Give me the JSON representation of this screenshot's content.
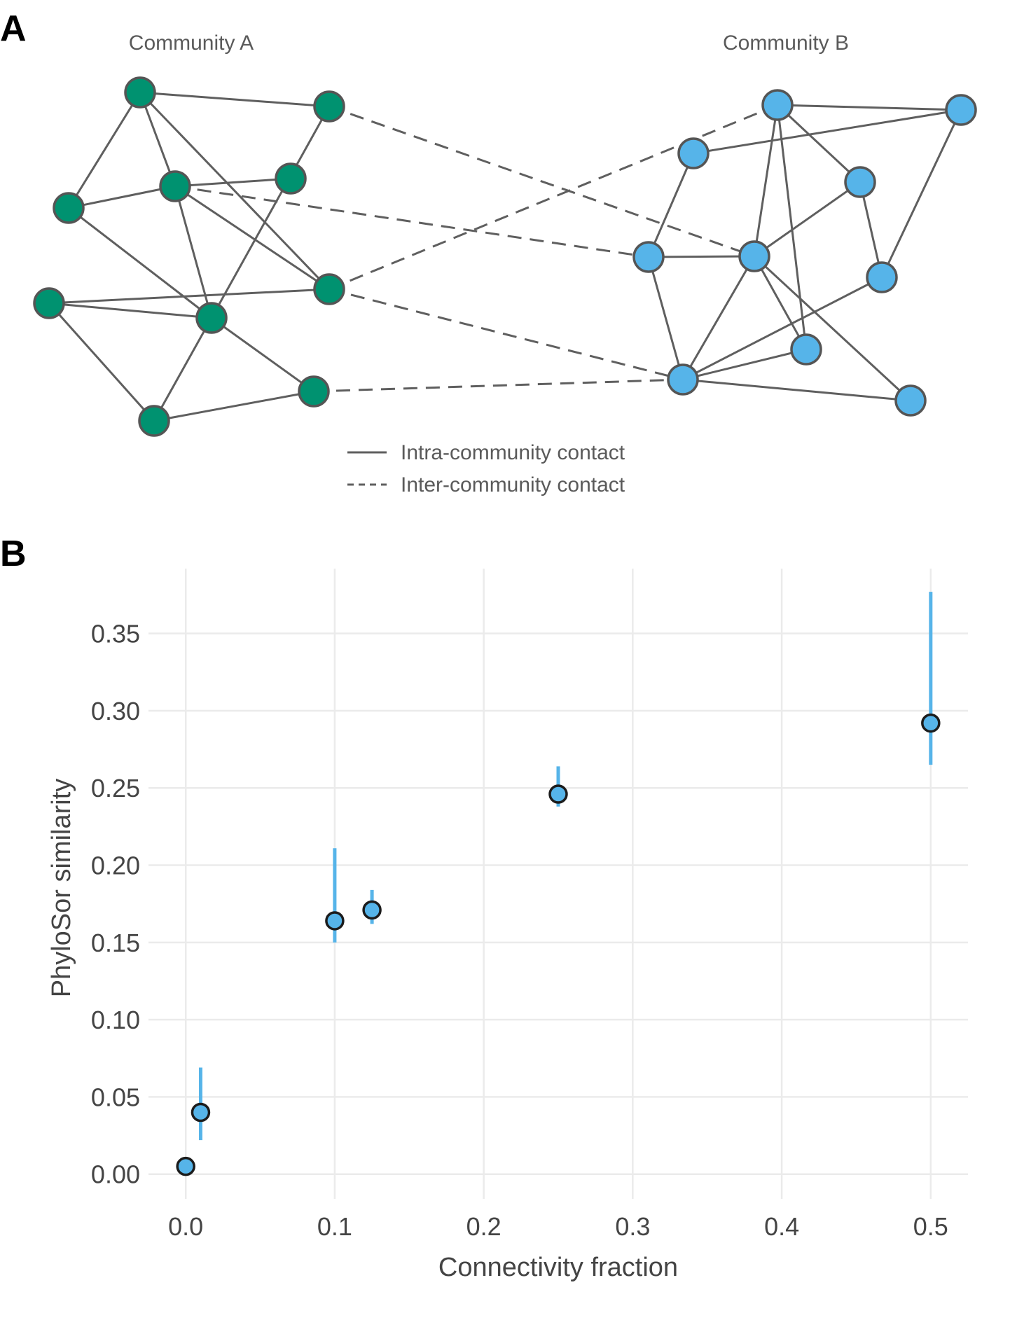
{
  "panel_a": {
    "letter": "A",
    "community_a_title": "Community A",
    "community_b_title": "Community B",
    "colors": {
      "community_a": "#009270",
      "community_b": "#56b4e9",
      "node_stroke": "#555555",
      "edge": "#5f5f5f"
    },
    "legend": {
      "intra_label": "Intra-community contact",
      "inter_label": "Inter-community contact"
    }
  },
  "panel_b": {
    "letter": "B"
  },
  "chart_data": {
    "type": "scatter",
    "title": "",
    "xlabel": "Connectivity fraction",
    "ylabel": "PhyloSor similarity",
    "xlim": [
      -0.025,
      0.525
    ],
    "ylim": [
      -0.016,
      0.392
    ],
    "xticks": [
      0.0,
      0.1,
      0.2,
      0.3,
      0.4,
      0.5
    ],
    "xtick_labels": [
      "0.0",
      "0.1",
      "0.2",
      "0.3",
      "0.4",
      "0.5"
    ],
    "yticks": [
      0.0,
      0.05,
      0.1,
      0.15,
      0.2,
      0.25,
      0.3,
      0.35
    ],
    "ytick_labels": [
      "0.00",
      "0.05",
      "0.10",
      "0.15",
      "0.20",
      "0.25",
      "0.30",
      "0.35"
    ],
    "grid": true,
    "point_color": "#56b4e9",
    "errorbar_color": "#56b4e9",
    "points": [
      {
        "x": 0.0,
        "y": 0.005,
        "ymin": null,
        "ymax": null
      },
      {
        "x": 0.01,
        "y": 0.04,
        "ymin": 0.022,
        "ymax": 0.069
      },
      {
        "x": 0.1,
        "y": 0.164,
        "ymin": 0.15,
        "ymax": 0.211
      },
      {
        "x": 0.125,
        "y": 0.171,
        "ymin": 0.162,
        "ymax": 0.184
      },
      {
        "x": 0.25,
        "y": 0.246,
        "ymin": 0.238,
        "ymax": 0.264
      },
      {
        "x": 0.5,
        "y": 0.292,
        "ymin": 0.265,
        "ymax": 0.377
      }
    ]
  }
}
